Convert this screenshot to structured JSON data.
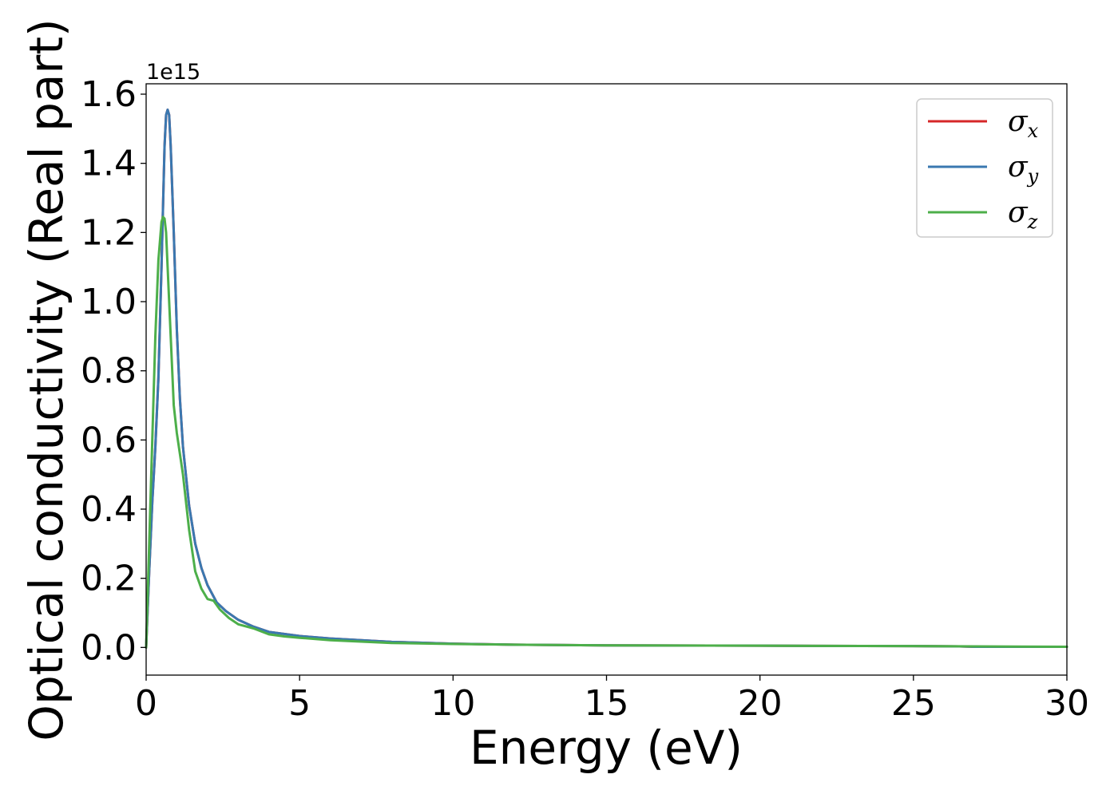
{
  "chart_data": {
    "type": "line",
    "xlabel": "Energy (eV)",
    "ylabel": "Optical conductivity (Real part)",
    "y_offset_text": "1e15",
    "xlim": [
      0,
      30
    ],
    "ylim": [
      -0.08,
      1.63
    ],
    "x_ticks": [
      0,
      5,
      10,
      15,
      20,
      25,
      30
    ],
    "x_tick_labels": [
      "0",
      "5",
      "10",
      "15",
      "20",
      "25",
      "30"
    ],
    "y_ticks": [
      0.0,
      0.2,
      0.4,
      0.6,
      0.8,
      1.0,
      1.2,
      1.4,
      1.6
    ],
    "y_tick_labels": [
      "0.0",
      "0.2",
      "0.4",
      "0.6",
      "0.8",
      "1.0",
      "1.2",
      "1.4",
      "1.6"
    ],
    "y_scale_factor": 1000000000000000.0,
    "grid": false,
    "legend_position": "top-right",
    "series": [
      {
        "name": "σx",
        "label_base": "σ",
        "label_sub": "x",
        "color": "#d62728",
        "x": [
          0,
          0.1,
          0.2,
          0.3,
          0.4,
          0.5,
          0.6,
          0.65,
          0.7,
          0.75,
          0.8,
          0.9,
          1.0,
          1.1,
          1.2,
          1.4,
          1.6,
          1.8,
          2.0,
          2.3,
          2.6,
          3.0,
          3.5,
          4.0,
          5.0,
          6.0,
          8.0,
          10.0,
          12.0,
          15.0,
          20.0,
          25.0,
          26.5,
          27.0,
          30.0
        ],
        "y": [
          0.0,
          0.22,
          0.42,
          0.58,
          0.78,
          1.1,
          1.45,
          1.54,
          1.555,
          1.54,
          1.45,
          1.2,
          0.92,
          0.72,
          0.58,
          0.41,
          0.3,
          0.23,
          0.18,
          0.13,
          0.105,
          0.08,
          0.06,
          0.045,
          0.033,
          0.026,
          0.016,
          0.011,
          0.008,
          0.006,
          0.005,
          0.004,
          0.003,
          0.002,
          0.002
        ]
      },
      {
        "name": "σy",
        "label_base": "σ",
        "label_sub": "y",
        "color": "#3a78b0",
        "x": [
          0,
          0.1,
          0.2,
          0.3,
          0.4,
          0.5,
          0.6,
          0.65,
          0.7,
          0.75,
          0.8,
          0.9,
          1.0,
          1.1,
          1.2,
          1.4,
          1.6,
          1.8,
          2.0,
          2.3,
          2.6,
          3.0,
          3.5,
          4.0,
          5.0,
          6.0,
          8.0,
          10.0,
          12.0,
          15.0,
          20.0,
          25.0,
          26.5,
          27.0,
          30.0
        ],
        "y": [
          0.0,
          0.22,
          0.42,
          0.58,
          0.78,
          1.1,
          1.45,
          1.54,
          1.555,
          1.54,
          1.45,
          1.2,
          0.92,
          0.72,
          0.58,
          0.41,
          0.3,
          0.23,
          0.18,
          0.13,
          0.105,
          0.08,
          0.06,
          0.045,
          0.033,
          0.026,
          0.016,
          0.011,
          0.008,
          0.006,
          0.005,
          0.004,
          0.003,
          0.002,
          0.002
        ]
      },
      {
        "name": "σz",
        "label_base": "σ",
        "label_sub": "z",
        "color": "#4daf4a",
        "x": [
          0,
          0.1,
          0.2,
          0.3,
          0.4,
          0.5,
          0.55,
          0.6,
          0.65,
          0.7,
          0.8,
          0.9,
          1.0,
          1.2,
          1.4,
          1.6,
          1.8,
          2.0,
          2.2,
          2.4,
          2.7,
          3.0,
          3.5,
          4.0,
          4.5,
          5.0,
          6.0,
          8.0,
          10.0,
          12.0,
          15.0,
          20.0,
          25.0,
          27.0,
          30.0
        ],
        "y": [
          0.0,
          0.3,
          0.6,
          0.9,
          1.12,
          1.23,
          1.245,
          1.24,
          1.2,
          1.1,
          0.9,
          0.7,
          0.62,
          0.5,
          0.34,
          0.22,
          0.17,
          0.14,
          0.135,
          0.11,
          0.085,
          0.067,
          0.055,
          0.038,
          0.032,
          0.028,
          0.021,
          0.013,
          0.01,
          0.008,
          0.006,
          0.005,
          0.004,
          0.003,
          0.002
        ]
      }
    ]
  }
}
